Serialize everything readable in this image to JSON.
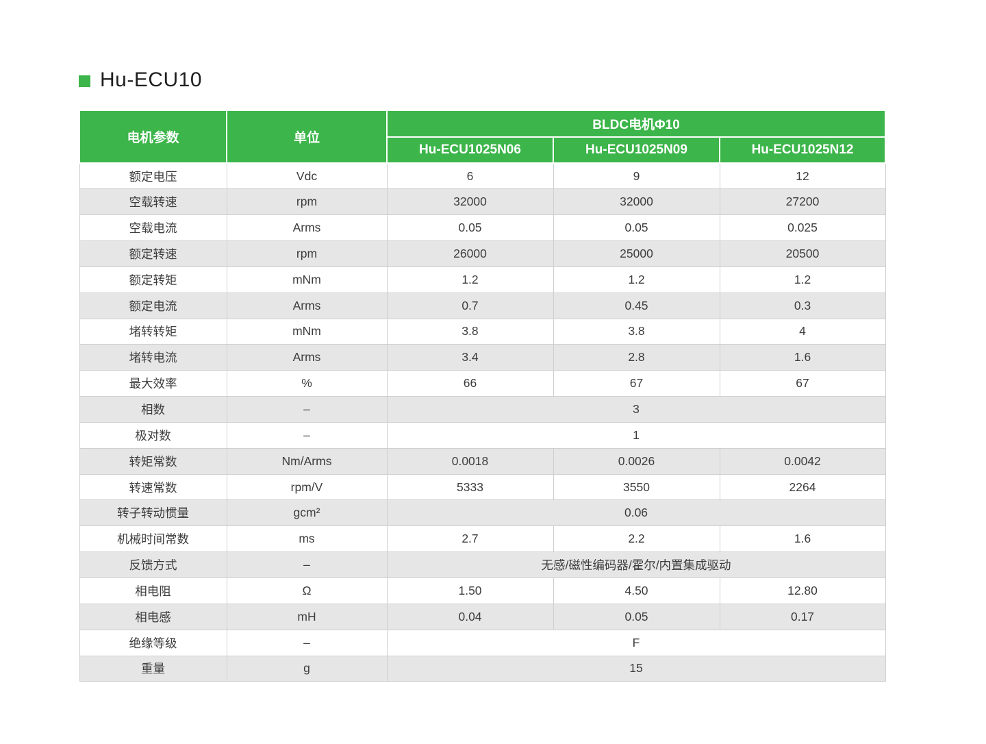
{
  "colors": {
    "header_green": "#3CB54A",
    "row_alt_gray": "#E6E6E6",
    "grid_line": "#CFCFCF",
    "header_text": "#FFFFFF",
    "body_text": "#3D3D3D",
    "title_text": "#1F1F1F"
  },
  "title": {
    "text": "Hu-ECU10"
  },
  "table": {
    "header": {
      "col_param": "电机参数",
      "col_unit": "单位",
      "group": "BLDC电机Φ10",
      "models": [
        "Hu-ECU1025N06",
        "Hu-ECU1025N09",
        "Hu-ECU1025N12"
      ]
    },
    "rows": [
      {
        "label": "额定电压",
        "unit": "Vdc",
        "values": [
          "6",
          "9",
          "12"
        ]
      },
      {
        "label": "空载转速",
        "unit": "rpm",
        "values": [
          "32000",
          "32000",
          "27200"
        ]
      },
      {
        "label": "空载电流",
        "unit": "Arms",
        "values": [
          "0.05",
          "0.05",
          "0.025"
        ]
      },
      {
        "label": "额定转速",
        "unit": "rpm",
        "values": [
          "26000",
          "25000",
          "20500"
        ]
      },
      {
        "label": "额定转矩",
        "unit": "mNm",
        "values": [
          "1.2",
          "1.2",
          "1.2"
        ]
      },
      {
        "label": "额定电流",
        "unit": "Arms",
        "values": [
          "0.7",
          "0.45",
          "0.3"
        ]
      },
      {
        "label": "堵转转矩",
        "unit": "mNm",
        "values": [
          "3.8",
          "3.8",
          "4"
        ]
      },
      {
        "label": "堵转电流",
        "unit": "Arms",
        "values": [
          "3.4",
          "2.8",
          "1.6"
        ]
      },
      {
        "label": "最大效率",
        "unit": "%",
        "values": [
          "66",
          "67",
          "67"
        ]
      },
      {
        "label": "相数",
        "unit": "–",
        "merged": "3"
      },
      {
        "label": "极对数",
        "unit": "–",
        "merged": "1"
      },
      {
        "label": "转矩常数",
        "unit": "Nm/Arms",
        "values": [
          "0.0018",
          "0.0026",
          "0.0042"
        ]
      },
      {
        "label": "转速常数",
        "unit": "rpm/V",
        "values": [
          "5333",
          "3550",
          "2264"
        ]
      },
      {
        "label": "转子转动惯量",
        "unit": "gcm²",
        "merged": "0.06"
      },
      {
        "label": "机械时间常数",
        "unit": "ms",
        "values": [
          "2.7",
          "2.2",
          "1.6"
        ]
      },
      {
        "label": "反馈方式",
        "unit": "–",
        "merged": "无感/磁性编码器/霍尔/内置集成驱动"
      },
      {
        "label": "相电阻",
        "unit": "Ω",
        "values": [
          "1.50",
          "4.50",
          "12.80"
        ]
      },
      {
        "label": "相电感",
        "unit": "mH",
        "values": [
          "0.04",
          "0.05",
          "0.17"
        ]
      },
      {
        "label": "绝缘等级",
        "unit": "–",
        "merged": "F"
      },
      {
        "label": "重量",
        "unit": "g",
        "merged": "15"
      }
    ]
  }
}
